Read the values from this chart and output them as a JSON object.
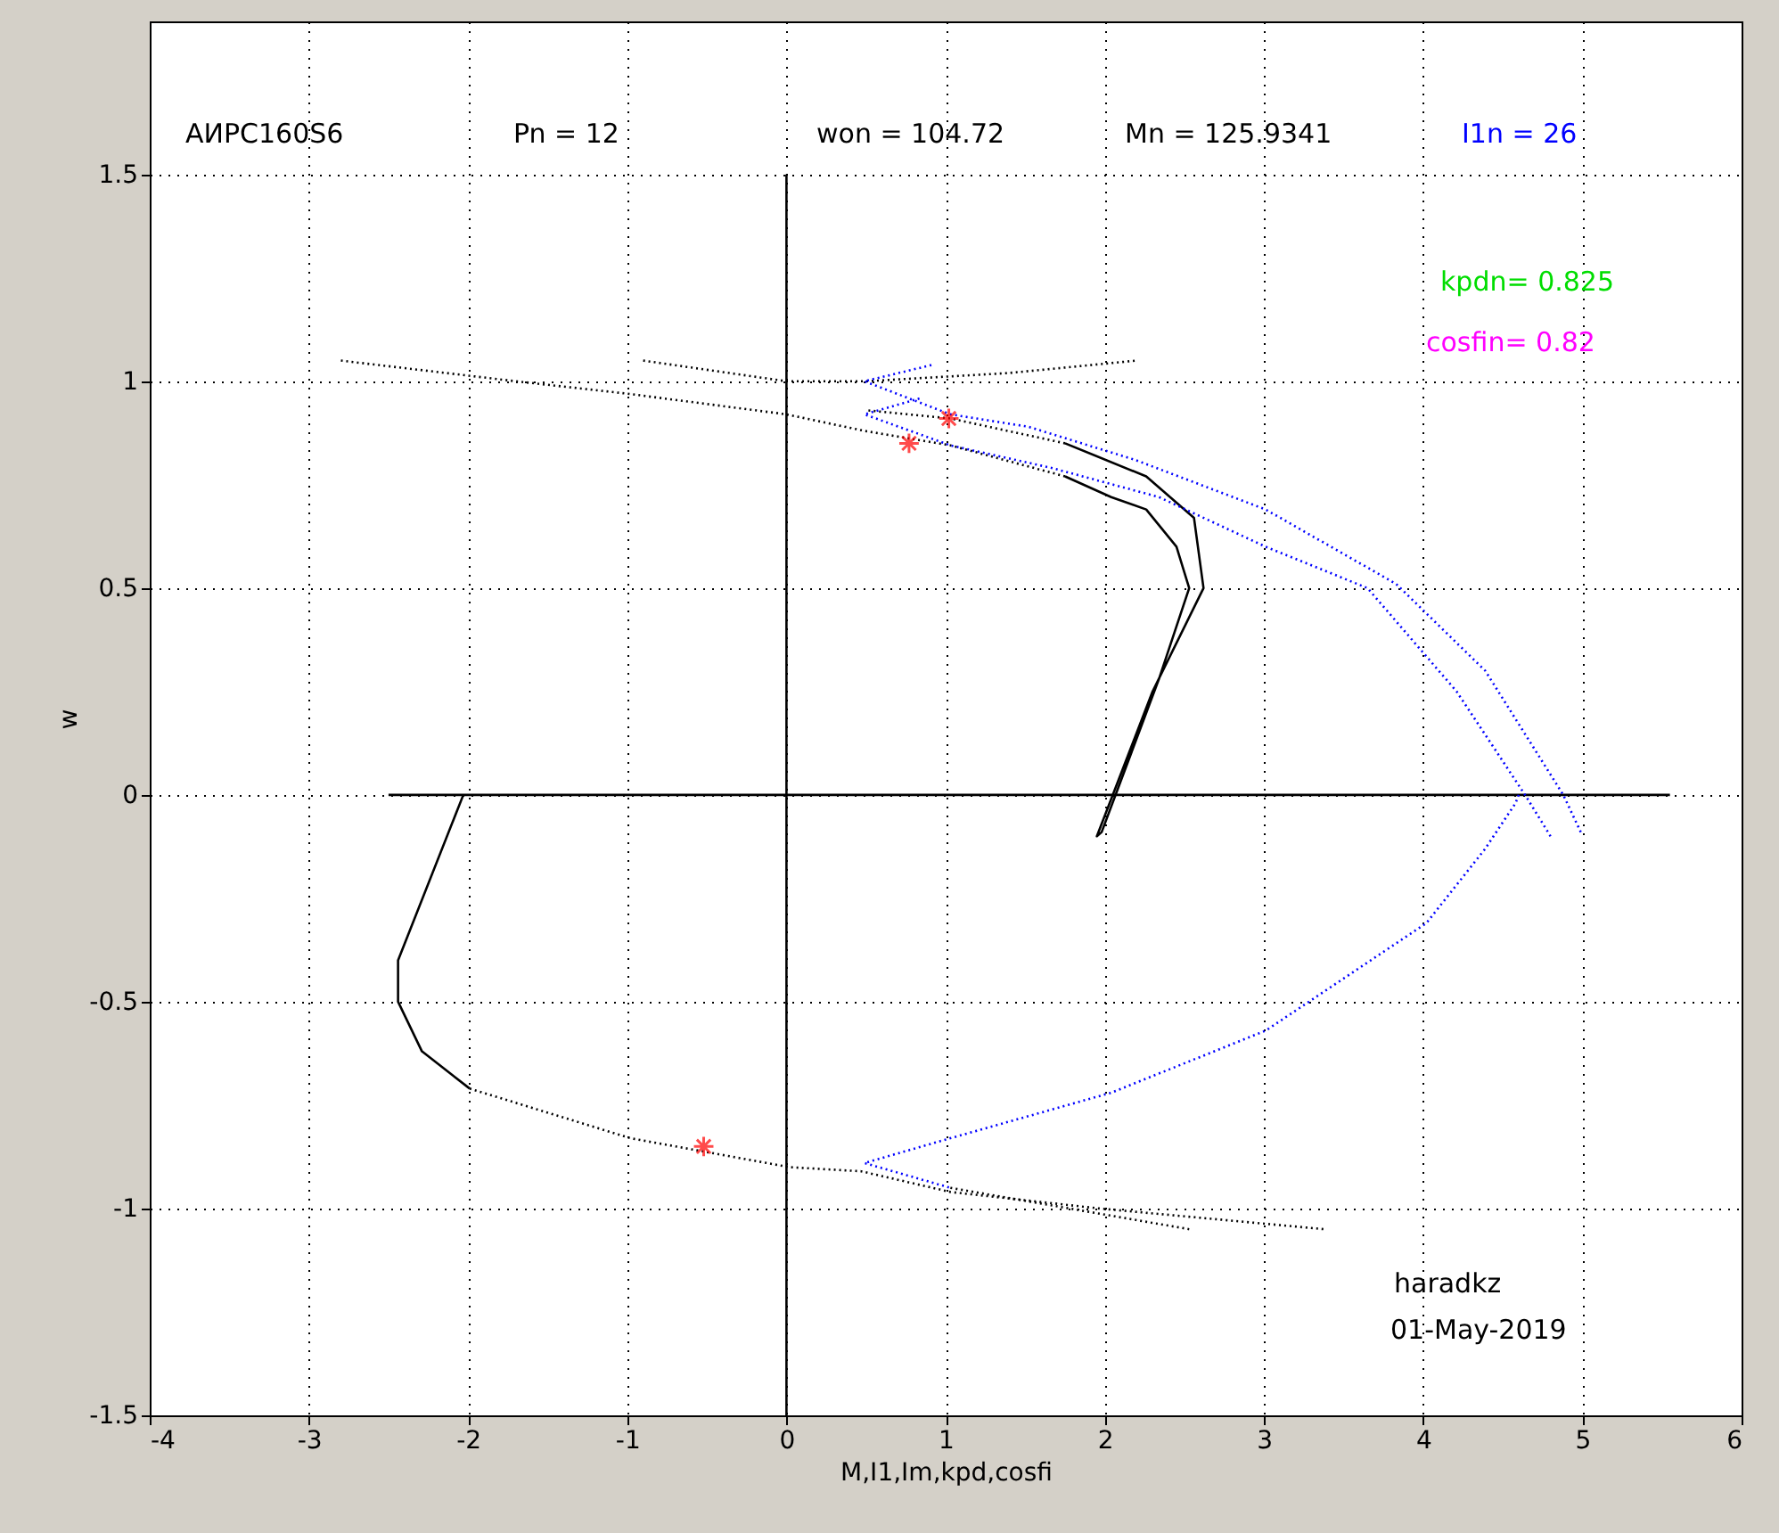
{
  "chart_data": {
    "type": "line",
    "xlabel": "M,I1,Im,kpd,cosfi",
    "ylabel": "w",
    "xlim": [
      -4,
      6
    ],
    "xticks": [
      -4,
      -3,
      -2,
      -1,
      0,
      1,
      2,
      3,
      4,
      5,
      6
    ],
    "ylim": [
      -1.5,
      1.87
    ],
    "yticks": [
      -1.5,
      -1,
      -0.5,
      0,
      0.5,
      1,
      1.5
    ],
    "grid": true,
    "annotations": [
      "АИРС160S6",
      "Pn =  12",
      "won =  104.72",
      "Mn =  125.9341",
      "I1n =   26",
      "kpdn=   0.825",
      "cosfin=   0.82",
      "haradkz",
      "01-May-2019"
    ],
    "series": [
      {
        "color": "#000000",
        "line_style": "solid",
        "x": [
          -2.5,
          5.55
        ],
        "values": [
          0,
          0
        ]
      },
      {
        "color": "#000000",
        "line_style": "solid",
        "x": [
          0,
          0
        ],
        "values": [
          -1.5,
          1.5
        ]
      },
      {
        "color": "#000000",
        "line_style": "solid",
        "x": [
          1.75,
          2.26,
          2.56,
          2.62,
          2.3,
          1.95,
          1.98,
          2.34,
          2.53,
          2.45,
          2.26,
          2.04,
          1.75
        ],
        "values": [
          0.85,
          0.77,
          0.67,
          0.5,
          0.25,
          -0.1,
          -0.09,
          0.28,
          0.5,
          0.6,
          0.69,
          0.72,
          0.77
        ]
      },
      {
        "color": "#000000",
        "line_style": "dotted",
        "x": [
          1.75,
          1.03,
          0.49,
          0,
          -1.0,
          -1.7,
          -2.8
        ],
        "values": [
          0.77,
          0.845,
          0.88,
          0.92,
          0.97,
          1.0,
          1.05
        ]
      },
      {
        "color": "#000000",
        "line_style": "dotted",
        "x": [
          1.75,
          1.03,
          0.5
        ],
        "values": [
          0.85,
          0.91,
          0.93
        ]
      },
      {
        "color": "#000000",
        "line_style": "dotted",
        "x": [
          -0.9,
          0,
          0.5,
          1.4,
          2.2
        ],
        "values": [
          1.05,
          1.0,
          1.0,
          1.02,
          1.05
        ]
      },
      {
        "color": "#0000ff",
        "line_style": "dotted",
        "x": [
          4.99,
          4.88,
          4.39,
          3.83,
          3.01,
          2.19,
          1.52,
          1.03,
          0.49,
          0.92
        ],
        "values": [
          -0.09,
          0,
          0.3,
          0.51,
          0.69,
          0.81,
          0.89,
          0.92,
          1.0,
          1.04
        ]
      },
      {
        "color": "#0000ff",
        "line_style": "dotted",
        "x": [
          4.8,
          4.64,
          4.21,
          3.65,
          3.01,
          2.34,
          1.67,
          1.03,
          0.49,
          0.85
        ],
        "values": [
          -0.1,
          0,
          0.25,
          0.5,
          0.6,
          0.72,
          0.79,
          0.845,
          0.92,
          0.96
        ]
      },
      {
        "color": "#000000",
        "line_style": "solid",
        "x": [
          -2.03,
          -2.44,
          -2.44,
          -2.29,
          -1.99
        ],
        "values": [
          0,
          -0.4,
          -0.5,
          -0.62,
          -0.71
        ]
      },
      {
        "color": "#000000",
        "line_style": "dotted",
        "x": [
          -1.99,
          -0.98,
          0.02,
          0.47,
          1.03,
          1.97,
          3.38
        ],
        "values": [
          -0.71,
          -0.83,
          -0.9,
          -0.91,
          -0.96,
          -1.0,
          -1.05
        ]
      },
      {
        "color": "#0000ff",
        "line_style": "dotted",
        "x": [
          4.6,
          4.58,
          4.39,
          4.02,
          3.01,
          2.04,
          1.03,
          0.49,
          1.03
        ],
        "values": [
          0,
          -0.02,
          -0.13,
          -0.31,
          -0.57,
          -0.72,
          -0.83,
          -0.89,
          -0.95
        ]
      },
      {
        "color": "#000000",
        "line_style": "dotted",
        "x": [
          1.03,
          2.53
        ],
        "values": [
          -0.95,
          -1.05
        ]
      },
      {
        "type": "scatter",
        "marker": "cross",
        "color": "#ff0000",
        "x": [
          0.77,
          1.02,
          -0.52
        ],
        "values": [
          0.85,
          0.91,
          -0.85
        ]
      }
    ]
  }
}
